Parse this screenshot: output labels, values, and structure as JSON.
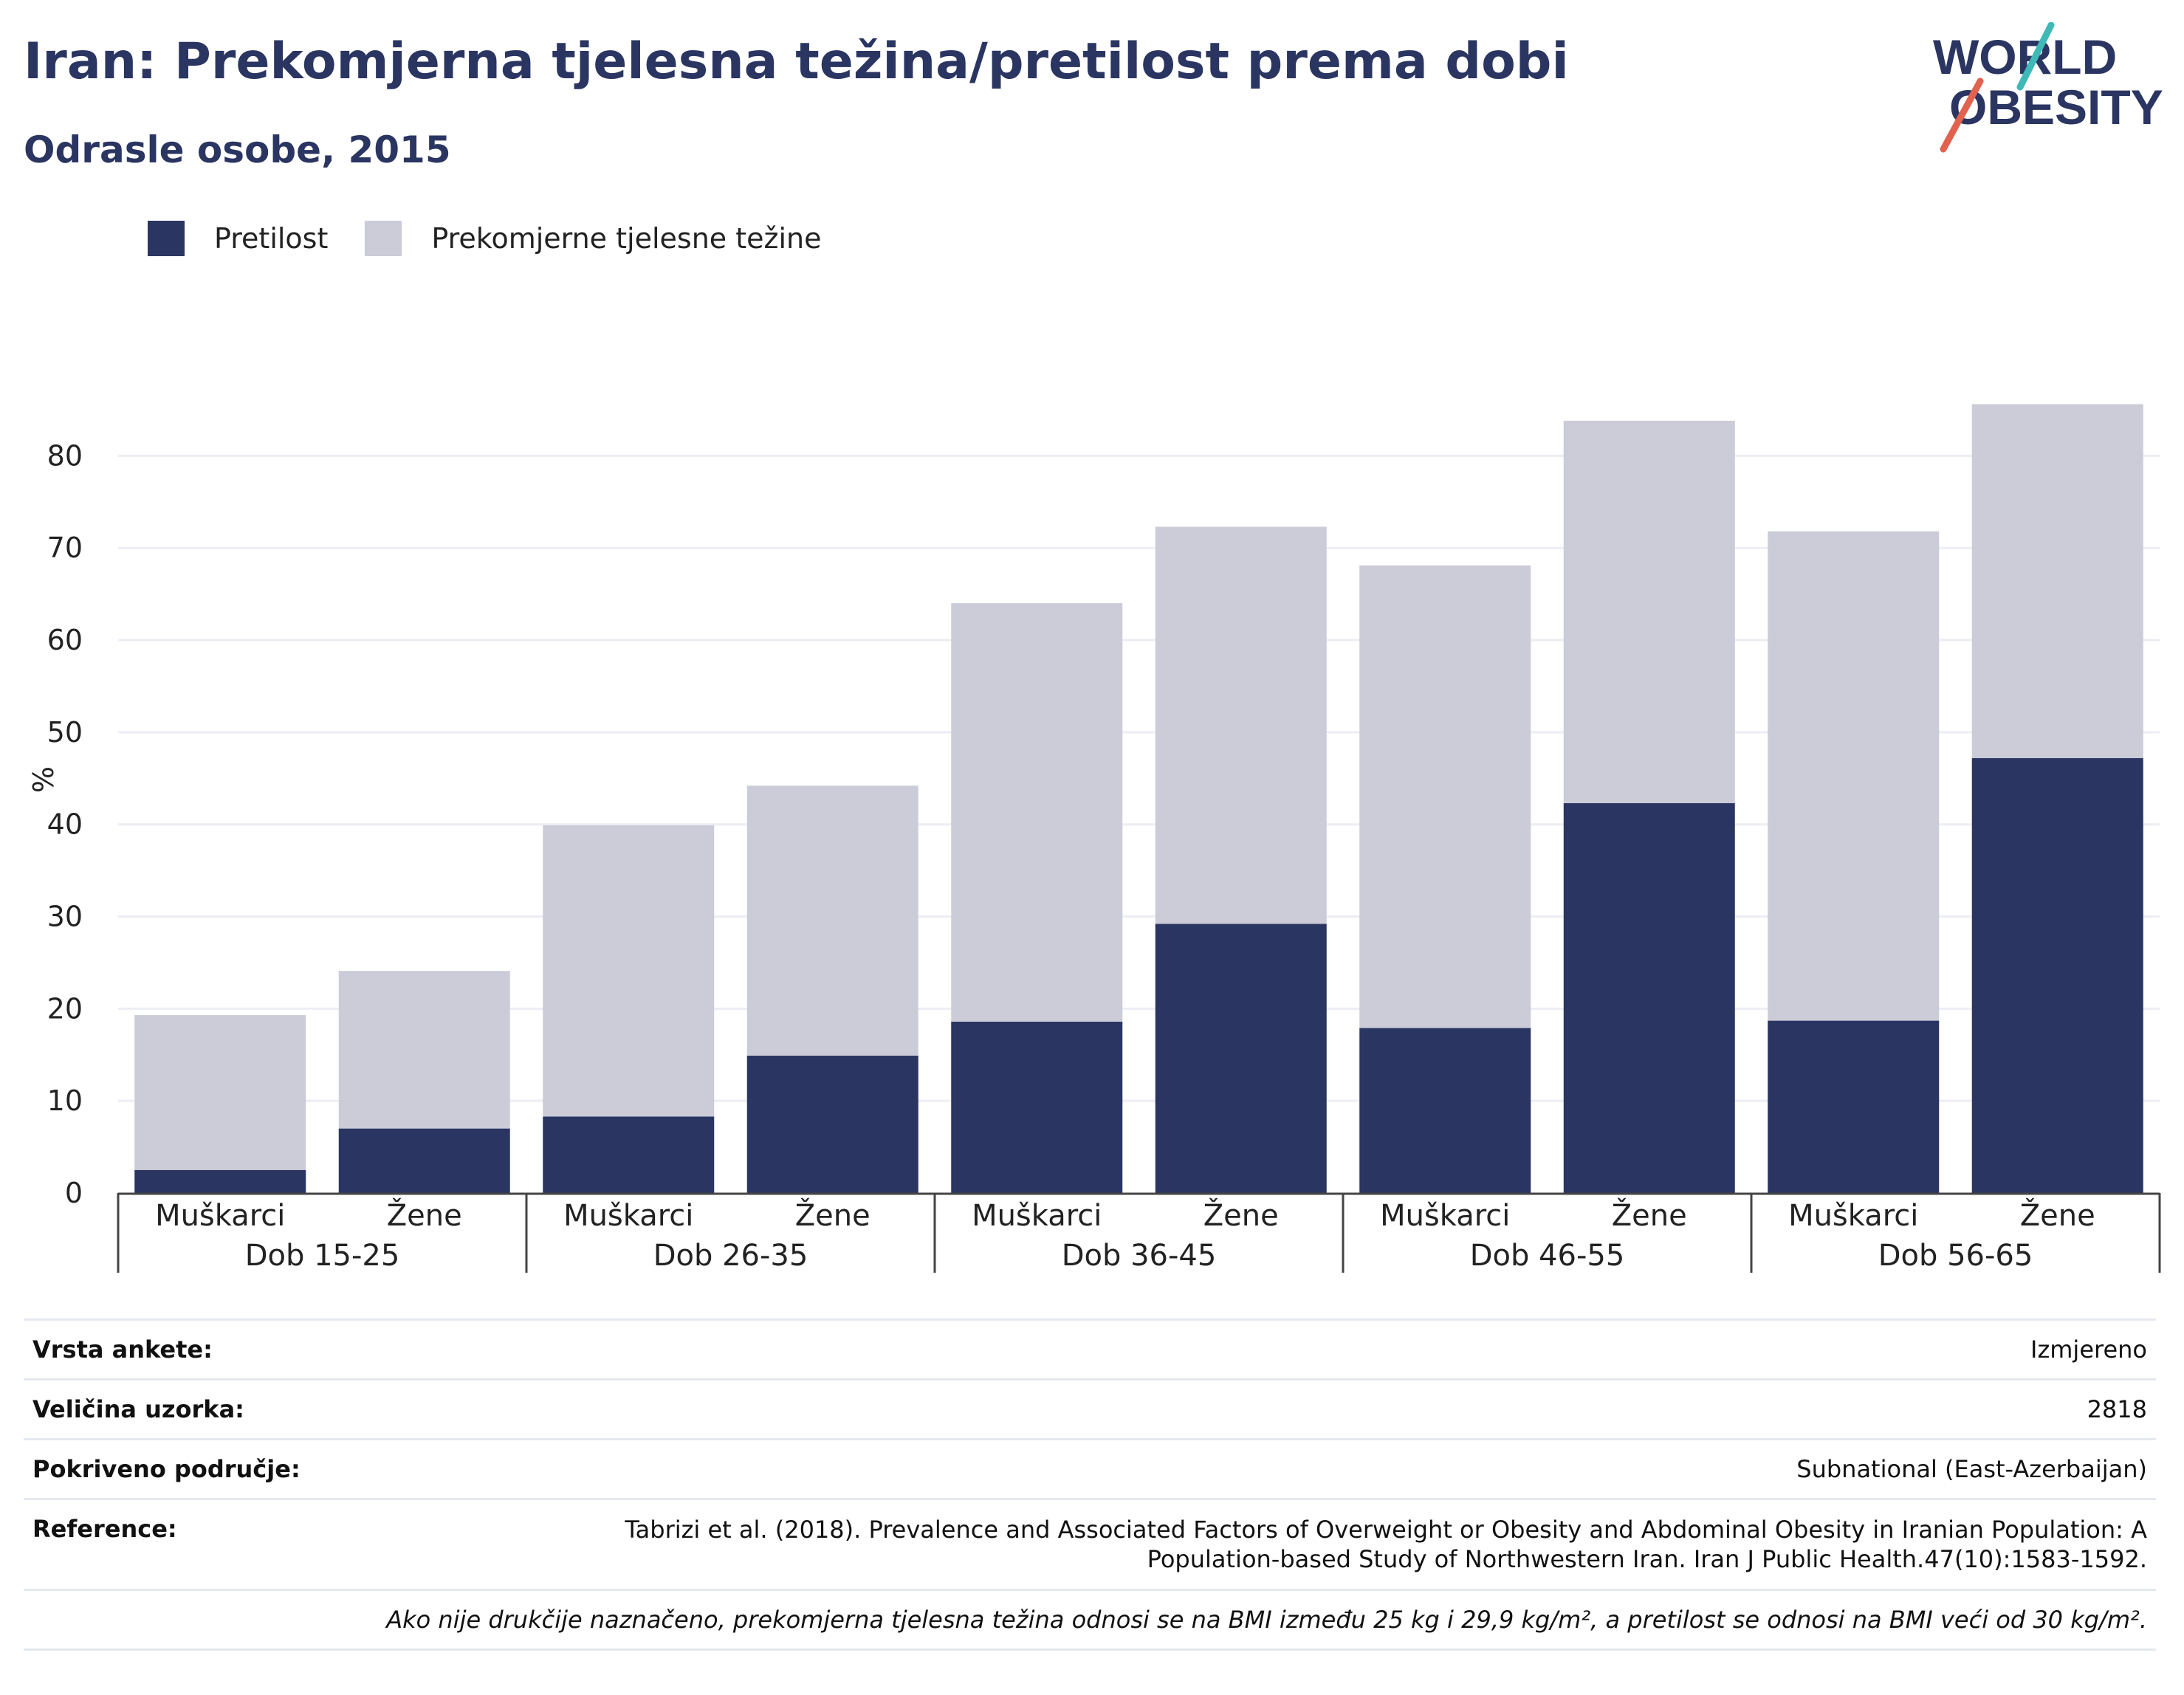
{
  "title": "Iran: Prekomjerna tjelesna težina/pretilost prema dobi",
  "subtitle": "Odrasle osobe, 2015",
  "logo": {
    "line1": "WORLD",
    "line2": "OBESITY"
  },
  "colors": {
    "obesity": "#2a3561",
    "overweight": "#cbccd8",
    "accent_teal": "#3fb8b8",
    "accent_red": "#e0624f"
  },
  "chart_data": {
    "type": "bar",
    "stacked": true,
    "ylabel": "%",
    "ylim": [
      0,
      87
    ],
    "yticks": [
      0,
      10,
      20,
      30,
      40,
      50,
      60,
      70,
      80
    ],
    "grid": true,
    "legend_placement": "top-left",
    "groups": [
      "Dob 15-25",
      "Dob 26-35",
      "Dob 36-45",
      "Dob 46-55",
      "Dob 56-65"
    ],
    "categories": [
      "Muškarci",
      "Žene",
      "Muškarci",
      "Žene",
      "Muškarci",
      "Žene",
      "Muškarci",
      "Žene",
      "Muškarci",
      "Žene"
    ],
    "series": [
      {
        "name": "Pretilost",
        "values": [
          2.5,
          7.0,
          8.3,
          14.9,
          18.6,
          29.2,
          17.9,
          42.3,
          18.7,
          47.2
        ]
      },
      {
        "name": "Prekomjerne tjelesne težine",
        "values": [
          16.8,
          17.1,
          31.6,
          29.3,
          45.4,
          43.1,
          50.2,
          41.5,
          53.1,
          38.4
        ]
      }
    ]
  },
  "info": {
    "survey_type_label": "Vrsta ankete:",
    "survey_type_value": "Izmjereno",
    "sample_size_label": "Veličina uzorka:",
    "sample_size_value": "2818",
    "coverage_label": "Pokriveno područje:",
    "coverage_value": "Subnational (East-Azerbaijan)",
    "reference_label": "Reference:",
    "reference_value": "Tabrizi et al. (2018). Prevalence and Associated Factors of Overweight or Obesity and Abdominal Obesity in Iranian Population: A Population-based Study of Northwestern Iran. Iran J Public Health.47(10):1583-1592.",
    "note": "Ako nije drukčije naznačeno, prekomjerna tjelesna težina odnosi se na BMI između 25 kg i 29,9 kg/m², a pretilost se odnosi na BMI veći od 30 kg/m²."
  }
}
